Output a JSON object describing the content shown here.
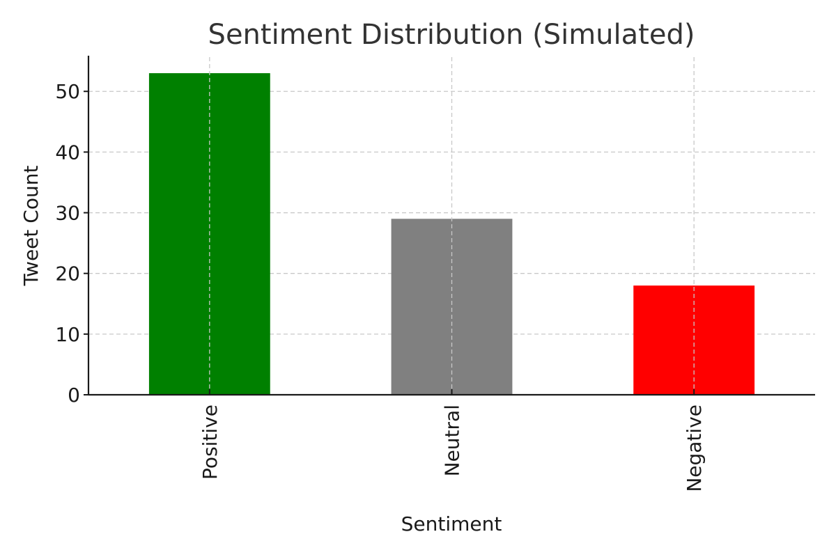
{
  "chart_data": {
    "type": "bar",
    "title": "Sentiment Distribution (Simulated)",
    "xlabel": "Sentiment",
    "ylabel": "Tweet Count",
    "categories": [
      "Positive",
      "Neutral",
      "Negative"
    ],
    "values": [
      53,
      29,
      18
    ],
    "colors": [
      "#008000",
      "#808080",
      "#ff0000"
    ],
    "ylim": [
      0,
      55.65
    ],
    "yticks": [
      0,
      10,
      20,
      30,
      40,
      50
    ],
    "ytick_labels": [
      "0",
      "10",
      "20",
      "30",
      "40",
      "50"
    ],
    "grid": true,
    "legend": "none"
  }
}
